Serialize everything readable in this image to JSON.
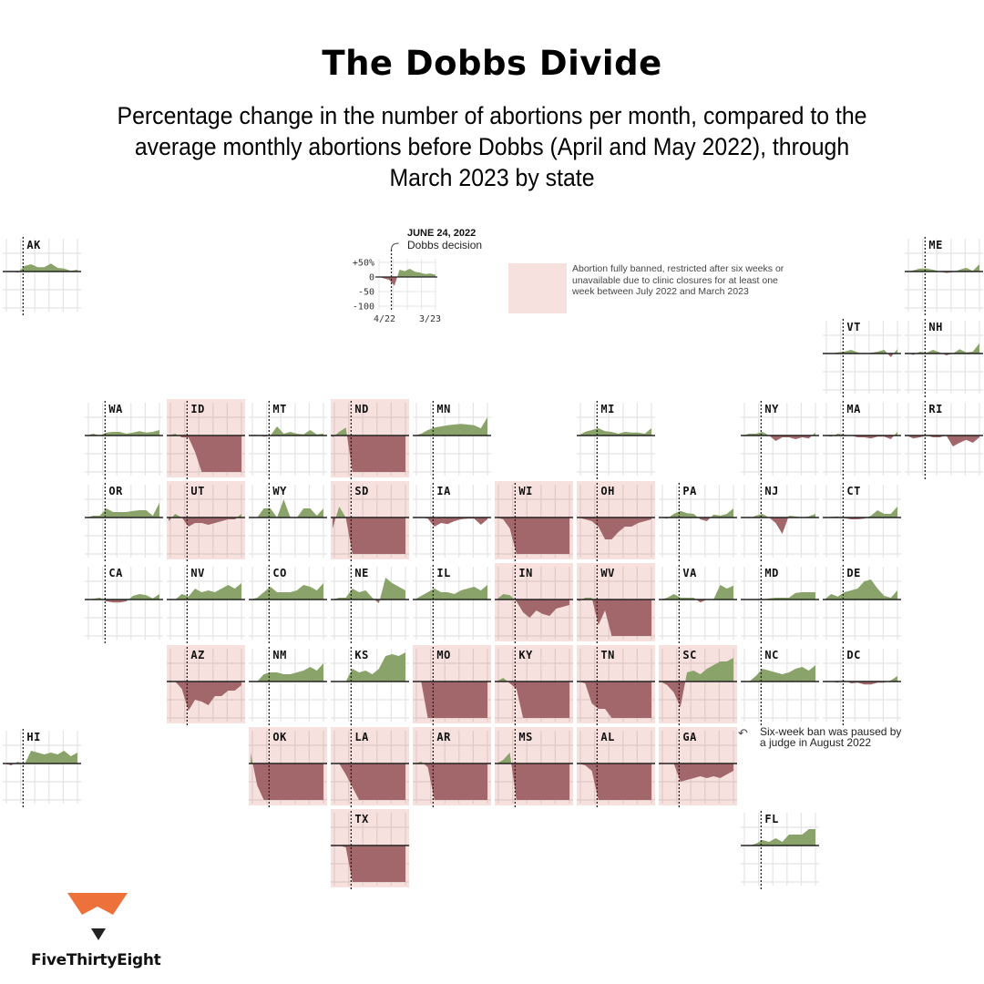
{
  "title": "The Dobbs Divide",
  "subtitle": "Percentage change in the number of abortions per month, compared to the average monthly abortions before Dobbs (April and May 2022), through March 2023 by state",
  "legend": {
    "dobbs_date": "JUNE 24, 2022",
    "dobbs_label": "Dobbs decision",
    "y_ticks": [
      "+50%",
      "0",
      "-50",
      "-100"
    ],
    "x_ticks": [
      "4/22",
      "3/23"
    ],
    "example_values": [
      0,
      -5,
      -10,
      -30,
      25,
      20,
      28,
      18,
      15,
      10,
      12,
      8
    ],
    "banned_description": "Abortion fully banned, restricted after six weeks or unavailable due to clinic closures for at least one week between July 2022 and March 2023",
    "banned_color": "#f6e1de"
  },
  "annotations": {
    "ga_note": "Six-week ban was paused by a judge in August 2022"
  },
  "colors": {
    "increase": "#89a36a",
    "decrease": "#a2676a",
    "banned_bg": "#f6e1de",
    "grid": "#e4e4e4",
    "axis": "#222222"
  },
  "logo": {
    "text": "FiveThirtyEight",
    "accent": "#ec713b"
  },
  "chart_data": {
    "type": "area",
    "title": "The Dobbs Divide",
    "xlabel": "",
    "ylabel": "Percentage change vs. April–May 2022 average",
    "x": [
      "4/22",
      "5/22",
      "6/22",
      "7/22",
      "8/22",
      "9/22",
      "10/22",
      "11/22",
      "12/22",
      "1/23",
      "2/23",
      "3/23"
    ],
    "x_ticks": [
      "4/22",
      "3/23"
    ],
    "ylim": [
      -100,
      50
    ],
    "y_ticks": [
      "+50%",
      "0",
      "-50",
      "-100"
    ],
    "event": {
      "x": "6/22",
      "label": "JUNE 24, 2022 Dobbs decision"
    },
    "grid": true,
    "states": [
      {
        "state": "AK",
        "col": 0,
        "row": 0,
        "banned": false,
        "values": [
          0,
          2,
          -3,
          15,
          20,
          12,
          12,
          22,
          10,
          8,
          2,
          5
        ]
      },
      {
        "state": "ME",
        "col": 11,
        "row": 0,
        "banned": false,
        "values": [
          -2,
          3,
          8,
          8,
          5,
          0,
          -4,
          -2,
          5,
          10,
          2,
          20
        ]
      },
      {
        "state": "VT",
        "col": 10,
        "row": 1,
        "banned": false,
        "values": [
          0,
          0,
          3,
          5,
          10,
          3,
          -2,
          2,
          5,
          10,
          -10,
          12
        ]
      },
      {
        "state": "NH",
        "col": 11,
        "row": 1,
        "banned": false,
        "values": [
          3,
          -4,
          5,
          2,
          10,
          3,
          -5,
          0,
          12,
          3,
          5,
          28
        ]
      },
      {
        "state": "WA",
        "col": 1,
        "row": 2,
        "banned": false,
        "values": [
          0,
          5,
          0,
          8,
          10,
          10,
          5,
          8,
          12,
          8,
          10,
          15
        ]
      },
      {
        "state": "ID",
        "col": 2,
        "row": 2,
        "banned": true,
        "values": [
          0,
          5,
          -5,
          -5,
          -45,
          -100,
          -100,
          -100,
          -100,
          -100,
          -100,
          -100
        ]
      },
      {
        "state": "MT",
        "col": 3,
        "row": 2,
        "banned": false,
        "values": [
          2,
          2,
          -3,
          0,
          25,
          5,
          10,
          5,
          3,
          15,
          3,
          5
        ]
      },
      {
        "state": "ND",
        "col": 4,
        "row": 2,
        "banned": true,
        "values": [
          -5,
          10,
          22,
          -100,
          -100,
          -100,
          -100,
          -100,
          -100,
          -100,
          -100,
          -100
        ]
      },
      {
        "state": "MN",
        "col": 5,
        "row": 2,
        "banned": false,
        "values": [
          0,
          5,
          15,
          22,
          25,
          28,
          30,
          32,
          30,
          28,
          20,
          50
        ]
      },
      {
        "state": "MI",
        "col": 7,
        "row": 2,
        "banned": false,
        "values": [
          0,
          10,
          15,
          20,
          12,
          10,
          5,
          10,
          8,
          8,
          5,
          20
        ]
      },
      {
        "state": "NY",
        "col": 9,
        "row": 2,
        "banned": false,
        "values": [
          0,
          5,
          5,
          10,
          0,
          -15,
          -5,
          -5,
          -10,
          -5,
          -8,
          8
        ]
      },
      {
        "state": "MA",
        "col": 10,
        "row": 2,
        "banned": false,
        "values": [
          0,
          -3,
          5,
          2,
          0,
          -5,
          -5,
          -8,
          -3,
          -3,
          -10,
          10
        ]
      },
      {
        "state": "RI",
        "col": 11,
        "row": 2,
        "banned": false,
        "values": [
          0,
          -8,
          -5,
          0,
          -5,
          -5,
          0,
          -30,
          -20,
          -12,
          -20,
          -5
        ]
      },
      {
        "state": "OR",
        "col": 1,
        "row": 3,
        "banned": false,
        "values": [
          0,
          5,
          5,
          25,
          15,
          15,
          15,
          18,
          20,
          20,
          5,
          40
        ]
      },
      {
        "state": "UT",
        "col": 2,
        "row": 3,
        "banned": true,
        "values": [
          -10,
          10,
          0,
          -25,
          -15,
          -15,
          -20,
          -15,
          -10,
          -5,
          -5,
          10
        ]
      },
      {
        "state": "WY",
        "col": 3,
        "row": 3,
        "banned": false,
        "values": [
          0,
          0,
          25,
          25,
          0,
          50,
          0,
          0,
          25,
          25,
          5,
          25
        ]
      },
      {
        "state": "SD",
        "col": 4,
        "row": 3,
        "banned": true,
        "values": [
          -30,
          30,
          0,
          -100,
          -100,
          -100,
          -100,
          -100,
          -100,
          -100,
          -100,
          -100
        ]
      },
      {
        "state": "IA",
        "col": 5,
        "row": 3,
        "banned": false,
        "values": [
          0,
          0,
          -3,
          -25,
          -15,
          -18,
          -10,
          -5,
          -3,
          -3,
          -20,
          -5
        ]
      },
      {
        "state": "WI",
        "col": 6,
        "row": 3,
        "banned": true,
        "values": [
          0,
          -5,
          -30,
          -100,
          -100,
          -100,
          -100,
          -100,
          -100,
          -100,
          -100,
          -100
        ]
      },
      {
        "state": "OH",
        "col": 7,
        "row": 3,
        "banned": true,
        "values": [
          0,
          -5,
          -10,
          -25,
          -60,
          -60,
          -40,
          -25,
          -25,
          -15,
          -10,
          -5
        ]
      },
      {
        "state": "PA",
        "col": 8,
        "row": 3,
        "banned": false,
        "values": [
          0,
          -3,
          10,
          18,
          12,
          10,
          -5,
          -10,
          8,
          5,
          10,
          25
        ]
      },
      {
        "state": "NJ",
        "col": 9,
        "row": 3,
        "banned": false,
        "values": [
          0,
          -2,
          5,
          10,
          0,
          -15,
          -45,
          5,
          3,
          0,
          3,
          10
        ]
      },
      {
        "state": "CT",
        "col": 10,
        "row": 3,
        "banned": false,
        "values": [
          0,
          2,
          3,
          -2,
          -5,
          -5,
          -3,
          5,
          20,
          10,
          10,
          30
        ]
      },
      {
        "state": "CA",
        "col": 1,
        "row": 4,
        "banned": false,
        "values": [
          0,
          2,
          5,
          -5,
          -8,
          -8,
          -5,
          10,
          15,
          12,
          3,
          15
        ]
      },
      {
        "state": "NV",
        "col": 2,
        "row": 4,
        "banned": false,
        "values": [
          0,
          0,
          15,
          8,
          30,
          20,
          25,
          20,
          30,
          40,
          30,
          45
        ]
      },
      {
        "state": "CO",
        "col": 3,
        "row": 4,
        "banned": false,
        "values": [
          0,
          5,
          20,
          35,
          20,
          20,
          20,
          25,
          40,
          35,
          25,
          45
        ]
      },
      {
        "state": "NE",
        "col": 4,
        "row": 4,
        "banned": false,
        "values": [
          0,
          5,
          5,
          30,
          20,
          25,
          5,
          -10,
          60,
          45,
          35,
          25
        ]
      },
      {
        "state": "IL",
        "col": 5,
        "row": 4,
        "banned": false,
        "values": [
          0,
          10,
          20,
          30,
          20,
          20,
          15,
          25,
          30,
          35,
          25,
          40
        ]
      },
      {
        "state": "IN",
        "col": 6,
        "row": 4,
        "banned": true,
        "values": [
          0,
          15,
          12,
          -5,
          -35,
          -50,
          -30,
          -40,
          -45,
          -25,
          -20,
          -15
        ]
      },
      {
        "state": "WV",
        "col": 7,
        "row": 4,
        "banned": true,
        "values": [
          -5,
          5,
          5,
          -70,
          -30,
          -100,
          -100,
          -100,
          -100,
          -100,
          -100,
          -100
        ]
      },
      {
        "state": "VA",
        "col": 8,
        "row": 4,
        "banned": false,
        "values": [
          0,
          5,
          15,
          5,
          5,
          5,
          -8,
          0,
          0,
          40,
          30,
          38
        ]
      },
      {
        "state": "MD",
        "col": 9,
        "row": 4,
        "banned": false,
        "values": [
          0,
          0,
          0,
          0,
          3,
          5,
          5,
          5,
          18,
          20,
          20,
          20
        ]
      },
      {
        "state": "DE",
        "col": 10,
        "row": 4,
        "banned": false,
        "values": [
          0,
          15,
          8,
          20,
          25,
          30,
          50,
          55,
          30,
          10,
          5,
          25
        ]
      },
      {
        "state": "AZ",
        "col": 2,
        "row": 5,
        "banned": true,
        "values": [
          3,
          0,
          -20,
          -80,
          -50,
          -55,
          -65,
          -40,
          -40,
          -25,
          -25,
          -10
        ]
      },
      {
        "state": "NM",
        "col": 3,
        "row": 5,
        "banned": false,
        "values": [
          0,
          0,
          20,
          25,
          25,
          20,
          20,
          25,
          30,
          40,
          30,
          50
        ]
      },
      {
        "state": "KS",
        "col": 4,
        "row": 5,
        "banned": false,
        "values": [
          0,
          0,
          0,
          35,
          25,
          30,
          20,
          35,
          70,
          75,
          70,
          80
        ]
      },
      {
        "state": "MO",
        "col": 5,
        "row": 5,
        "banned": true,
        "values": [
          0,
          0,
          -100,
          -100,
          -100,
          -100,
          -100,
          -100,
          -100,
          -100,
          -100,
          -100
        ]
      },
      {
        "state": "KY",
        "col": 6,
        "row": 5,
        "banned": true,
        "values": [
          0,
          10,
          -5,
          -20,
          -100,
          -100,
          -100,
          -100,
          -100,
          -100,
          -100,
          -100
        ]
      },
      {
        "state": "TN",
        "col": 7,
        "row": 5,
        "banned": true,
        "values": [
          0,
          -5,
          -60,
          -75,
          -75,
          -100,
          -100,
          -100,
          -100,
          -100,
          -100,
          -100
        ]
      },
      {
        "state": "SC",
        "col": 8,
        "row": 5,
        "banned": true,
        "values": [
          0,
          -10,
          -30,
          -70,
          25,
          30,
          20,
          35,
          45,
          55,
          55,
          65
        ]
      },
      {
        "state": "NC",
        "col": 9,
        "row": 5,
        "banned": false,
        "values": [
          0,
          0,
          15,
          35,
          30,
          25,
          20,
          25,
          35,
          40,
          30,
          45
        ]
      },
      {
        "state": "DC",
        "col": 10,
        "row": 5,
        "banned": false,
        "values": [
          0,
          0,
          -3,
          3,
          -5,
          -3,
          -8,
          -8,
          -3,
          -3,
          3,
          15
        ]
      },
      {
        "state": "HI",
        "col": 0,
        "row": 6,
        "banned": false,
        "values": [
          0,
          -5,
          5,
          -3,
          35,
          30,
          25,
          30,
          25,
          35,
          20,
          30
        ]
      },
      {
        "state": "OK",
        "col": 3,
        "row": 6,
        "banned": true,
        "values": [
          30,
          -60,
          -100,
          -100,
          -100,
          -100,
          -100,
          -100,
          -100,
          -100,
          -100,
          -100
        ]
      },
      {
        "state": "LA",
        "col": 4,
        "row": 6,
        "banned": true,
        "values": [
          0,
          0,
          -30,
          -65,
          -100,
          -100,
          -100,
          -100,
          -100,
          -100,
          -100,
          -100
        ]
      },
      {
        "state": "AR",
        "col": 5,
        "row": 6,
        "banned": true,
        "values": [
          0,
          5,
          -10,
          -100,
          -100,
          -100,
          -100,
          -100,
          -100,
          -100,
          -100,
          -100
        ]
      },
      {
        "state": "MS",
        "col": 6,
        "row": 6,
        "banned": true,
        "values": [
          0,
          10,
          30,
          -100,
          -100,
          -100,
          -100,
          -100,
          -100,
          -100,
          -100,
          -100
        ]
      },
      {
        "state": "AL",
        "col": 7,
        "row": 6,
        "banned": true,
        "values": [
          0,
          -5,
          -20,
          -100,
          -100,
          -100,
          -100,
          -100,
          -100,
          -100,
          -100,
          -100
        ]
      },
      {
        "state": "GA",
        "col": 8,
        "row": 6,
        "banned": true,
        "values": [
          0,
          0,
          0,
          -50,
          -45,
          -40,
          -35,
          -40,
          -35,
          -40,
          -30,
          -20
        ]
      },
      {
        "state": "TX",
        "col": 4,
        "row": 7,
        "banned": true,
        "values": [
          0,
          0,
          -5,
          -100,
          -100,
          -100,
          -100,
          -100,
          -100,
          -100,
          -100,
          -100
        ]
      },
      {
        "state": "FL",
        "col": 9,
        "row": 7,
        "banned": false,
        "values": [
          0,
          0,
          5,
          15,
          10,
          20,
          10,
          30,
          30,
          30,
          45,
          45
        ]
      }
    ]
  }
}
